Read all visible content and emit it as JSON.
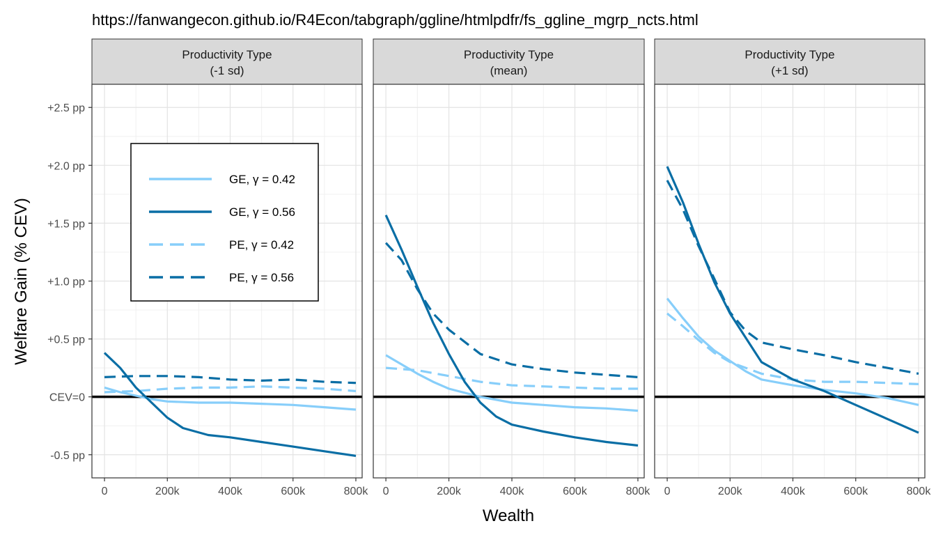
{
  "title": "https://fanwangecon.github.io/R4Econ/tabgraph/ggline/htmlpdfr/fs_ggline_mgrp_ncts.html",
  "chart_data": {
    "type": "line",
    "xlabel": "Wealth",
    "ylabel": "Welfare Gain (% CEV)",
    "xlim": [
      -40000,
      820000
    ],
    "ylim": [
      -0.7,
      2.7
    ],
    "x_ticks": [
      0,
      200000,
      400000,
      600000,
      800000
    ],
    "x_tick_labels": [
      "0",
      "200k",
      "400k",
      "600k",
      "800k"
    ],
    "y_ticks": [
      -0.5,
      0,
      0.5,
      1.0,
      1.5,
      2.0,
      2.5
    ],
    "y_tick_labels": [
      "-0.5 pp",
      "CEV=0",
      "+0.5 pp",
      "+1.0 pp",
      "+1.5 pp",
      "+2.0 pp",
      "+2.5 pp"
    ],
    "hline": 0,
    "grid": true,
    "legend_position": "inside-top-left",
    "series_styles": [
      {
        "key": "ge042",
        "label": "GE, γ = 0.42",
        "color": "#87cefa",
        "dash": "solid"
      },
      {
        "key": "ge056",
        "label": "GE, γ = 0.56",
        "color": "#0a6ea5",
        "dash": "solid"
      },
      {
        "key": "pe042",
        "label": "PE, γ = 0.42",
        "color": "#87cefa",
        "dash": "dashed"
      },
      {
        "key": "pe056",
        "label": "PE, γ = 0.56",
        "color": "#0a6ea5",
        "dash": "dashed"
      }
    ],
    "panels": [
      {
        "strip": [
          "Productivity Type",
          "(-1 sd)"
        ],
        "series": {
          "ge042": [
            [
              0,
              0.08
            ],
            [
              50000,
              0.04
            ],
            [
              100000,
              0.01
            ],
            [
              150000,
              -0.02
            ],
            [
              200000,
              -0.04
            ],
            [
              300000,
              -0.05
            ],
            [
              400000,
              -0.05
            ],
            [
              500000,
              -0.06
            ],
            [
              600000,
              -0.07
            ],
            [
              700000,
              -0.09
            ],
            [
              800000,
              -0.11
            ]
          ],
          "ge056": [
            [
              0,
              0.38
            ],
            [
              50000,
              0.25
            ],
            [
              100000,
              0.08
            ],
            [
              150000,
              -0.05
            ],
            [
              200000,
              -0.18
            ],
            [
              250000,
              -0.27
            ],
            [
              330000,
              -0.33
            ],
            [
              400000,
              -0.35
            ],
            [
              500000,
              -0.39
            ],
            [
              600000,
              -0.43
            ],
            [
              700000,
              -0.47
            ],
            [
              800000,
              -0.51
            ]
          ],
          "pe042": [
            [
              0,
              0.04
            ],
            [
              100000,
              0.05
            ],
            [
              200000,
              0.07
            ],
            [
              300000,
              0.08
            ],
            [
              400000,
              0.08
            ],
            [
              500000,
              0.09
            ],
            [
              600000,
              0.08
            ],
            [
              700000,
              0.07
            ],
            [
              800000,
              0.05
            ]
          ],
          "pe056": [
            [
              0,
              0.17
            ],
            [
              100000,
              0.18
            ],
            [
              200000,
              0.18
            ],
            [
              300000,
              0.17
            ],
            [
              400000,
              0.15
            ],
            [
              500000,
              0.14
            ],
            [
              600000,
              0.15
            ],
            [
              700000,
              0.13
            ],
            [
              800000,
              0.12
            ]
          ]
        }
      },
      {
        "strip": [
          "Productivity Type",
          "(mean)"
        ],
        "series": {
          "ge042": [
            [
              0,
              0.36
            ],
            [
              50000,
              0.28
            ],
            [
              100000,
              0.2
            ],
            [
              150000,
              0.13
            ],
            [
              200000,
              0.07
            ],
            [
              300000,
              0.0
            ],
            [
              400000,
              -0.05
            ],
            [
              500000,
              -0.07
            ],
            [
              600000,
              -0.09
            ],
            [
              700000,
              -0.1
            ],
            [
              800000,
              -0.12
            ]
          ],
          "ge056": [
            [
              0,
              1.57
            ],
            [
              50000,
              1.27
            ],
            [
              100000,
              0.95
            ],
            [
              150000,
              0.64
            ],
            [
              200000,
              0.37
            ],
            [
              250000,
              0.13
            ],
            [
              300000,
              -0.05
            ],
            [
              350000,
              -0.17
            ],
            [
              400000,
              -0.24
            ],
            [
              500000,
              -0.3
            ],
            [
              600000,
              -0.35
            ],
            [
              700000,
              -0.39
            ],
            [
              800000,
              -0.42
            ]
          ],
          "pe042": [
            [
              0,
              0.25
            ],
            [
              100000,
              0.23
            ],
            [
              200000,
              0.18
            ],
            [
              300000,
              0.13
            ],
            [
              400000,
              0.1
            ],
            [
              500000,
              0.09
            ],
            [
              600000,
              0.08
            ],
            [
              700000,
              0.07
            ],
            [
              800000,
              0.07
            ]
          ],
          "pe056": [
            [
              0,
              1.33
            ],
            [
              50000,
              1.18
            ],
            [
              100000,
              0.93
            ],
            [
              150000,
              0.72
            ],
            [
              200000,
              0.58
            ],
            [
              300000,
              0.37
            ],
            [
              400000,
              0.28
            ],
            [
              500000,
              0.24
            ],
            [
              600000,
              0.21
            ],
            [
              700000,
              0.19
            ],
            [
              800000,
              0.17
            ]
          ]
        }
      },
      {
        "strip": [
          "Productivity Type",
          "(+1 sd)"
        ],
        "series": {
          "ge042": [
            [
              0,
              0.85
            ],
            [
              50000,
              0.68
            ],
            [
              100000,
              0.52
            ],
            [
              150000,
              0.4
            ],
            [
              200000,
              0.31
            ],
            [
              250000,
              0.22
            ],
            [
              300000,
              0.15
            ],
            [
              400000,
              0.1
            ],
            [
              500000,
              0.06
            ],
            [
              600000,
              0.03
            ],
            [
              700000,
              -0.01
            ],
            [
              800000,
              -0.07
            ]
          ],
          "ge056": [
            [
              0,
              1.99
            ],
            [
              50000,
              1.68
            ],
            [
              100000,
              1.32
            ],
            [
              150000,
              0.99
            ],
            [
              200000,
              0.72
            ],
            [
              250000,
              0.51
            ],
            [
              300000,
              0.3
            ],
            [
              400000,
              0.15
            ],
            [
              500000,
              0.05
            ],
            [
              600000,
              -0.07
            ],
            [
              700000,
              -0.19
            ],
            [
              800000,
              -0.31
            ]
          ],
          "pe042": [
            [
              0,
              0.72
            ],
            [
              50000,
              0.61
            ],
            [
              100000,
              0.49
            ],
            [
              150000,
              0.38
            ],
            [
              200000,
              0.3
            ],
            [
              300000,
              0.2
            ],
            [
              400000,
              0.15
            ],
            [
              500000,
              0.13
            ],
            [
              600000,
              0.13
            ],
            [
              700000,
              0.12
            ],
            [
              800000,
              0.11
            ]
          ],
          "pe056": [
            [
              0,
              1.87
            ],
            [
              50000,
              1.62
            ],
            [
              100000,
              1.3
            ],
            [
              150000,
              1.02
            ],
            [
              200000,
              0.73
            ],
            [
              250000,
              0.57
            ],
            [
              300000,
              0.47
            ],
            [
              400000,
              0.41
            ],
            [
              500000,
              0.36
            ],
            [
              600000,
              0.3
            ],
            [
              700000,
              0.25
            ],
            [
              800000,
              0.2
            ]
          ]
        }
      }
    ]
  }
}
